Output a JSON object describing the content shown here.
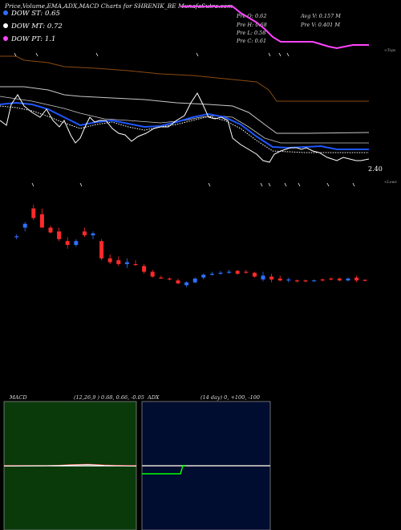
{
  "header": {
    "title": "Price,Volume,EMA,ADX,MACD Charts for SHRENIK_BE MunafaSutra.com"
  },
  "legend": [
    {
      "label": "DOW ST: 0.65",
      "color": "#2f6fff"
    },
    {
      "label": "DOW MT: 0.72",
      "color": "#ffffff"
    },
    {
      "label": "DOW PT: 1.1",
      "color": "#ff44ff"
    }
  ],
  "ohlc": {
    "open": "Pre  O: 0.62",
    "high": "Pre  H: 0.68",
    "low": "Pre  L: 0.58",
    "close": "Pre  C: 0.61",
    "avg_vol": "Avg V: 0.157 M",
    "pre_vol": "Pre  V: 0.401 M"
  },
  "side_labels": {
    "top": "<Tops",
    "lows": "<Lows"
  },
  "price_label": "2.40",
  "macd": {
    "title": "MACD",
    "params": "(12,26,9 ) 0.68, 0.66, -0.05"
  },
  "adx": {
    "title": "ADX",
    "params": "(14  day) 0, +100, -100"
  },
  "colors": {
    "ema_blue": "#1e56ff",
    "price_white": "#ffffff",
    "band_brown": "#8b4a12",
    "band_gray": "#c8c8c8",
    "dow_pt": "#ff44ff",
    "up_candle": "#2f6fff",
    "down_candle": "#ff2a2a",
    "macd_bg": "#0a3a0a",
    "adx_bg": "#000c30",
    "adx_green": "#00ff00"
  },
  "chart_data": {
    "type": "candlestick",
    "candles": [
      {
        "o": 0,
        "h": 0,
        "l": 0,
        "c": 0,
        "up": true
      },
      {
        "o": 0.97,
        "h": 0.985,
        "l": 0.96,
        "c": 0.975,
        "up": true
      },
      {
        "o": 1.02,
        "h": 1.05,
        "l": 1.0,
        "c": 1.04,
        "up": true
      },
      {
        "o": 1.12,
        "h": 1.14,
        "l": 1.06,
        "c": 1.07,
        "up": false
      },
      {
        "o": 1.09,
        "h": 1.12,
        "l": 1.02,
        "c": 1.02,
        "up": false
      },
      {
        "o": 1.02,
        "h": 1.03,
        "l": 0.99,
        "c": 0.995,
        "up": false
      },
      {
        "o": 1.0,
        "h": 1.02,
        "l": 0.95,
        "c": 0.96,
        "up": false
      },
      {
        "o": 0.95,
        "h": 0.97,
        "l": 0.91,
        "c": 0.93,
        "up": false
      },
      {
        "o": 0.93,
        "h": 0.96,
        "l": 0.92,
        "c": 0.95,
        "up": true
      },
      {
        "o": 1.0,
        "h": 1.02,
        "l": 0.97,
        "c": 0.98,
        "up": false
      },
      {
        "o": 0.98,
        "h": 1.0,
        "l": 0.96,
        "c": 0.99,
        "up": true
      },
      {
        "o": 0.95,
        "h": 0.96,
        "l": 0.85,
        "c": 0.86,
        "up": false
      },
      {
        "o": 0.86,
        "h": 0.88,
        "l": 0.83,
        "c": 0.84,
        "up": false
      },
      {
        "o": 0.85,
        "h": 0.87,
        "l": 0.82,
        "c": 0.83,
        "up": false
      },
      {
        "o": 0.83,
        "h": 0.86,
        "l": 0.81,
        "c": 0.84,
        "up": true
      },
      {
        "o": 0.83,
        "h": 0.85,
        "l": 0.82,
        "c": 0.83,
        "up": false
      },
      {
        "o": 0.82,
        "h": 0.83,
        "l": 0.78,
        "c": 0.79,
        "up": false
      },
      {
        "o": 0.79,
        "h": 0.8,
        "l": 0.76,
        "c": 0.765,
        "up": false
      },
      {
        "o": 0.76,
        "h": 0.77,
        "l": 0.755,
        "c": 0.76,
        "up": false
      },
      {
        "o": 0.755,
        "h": 0.76,
        "l": 0.745,
        "c": 0.75,
        "up": false
      },
      {
        "o": 0.745,
        "h": 0.755,
        "l": 0.725,
        "c": 0.73,
        "up": false
      },
      {
        "o": 0.72,
        "h": 0.74,
        "l": 0.71,
        "c": 0.735,
        "up": true
      },
      {
        "o": 0.735,
        "h": 0.76,
        "l": 0.73,
        "c": 0.755,
        "up": true
      },
      {
        "o": 0.76,
        "h": 0.78,
        "l": 0.75,
        "c": 0.775,
        "up": true
      },
      {
        "o": 0.775,
        "h": 0.79,
        "l": 0.77,
        "c": 0.78,
        "up": true
      },
      {
        "o": 0.78,
        "h": 0.795,
        "l": 0.775,
        "c": 0.785,
        "up": true
      },
      {
        "o": 0.785,
        "h": 0.8,
        "l": 0.78,
        "c": 0.79,
        "up": true
      },
      {
        "o": 0.795,
        "h": 0.8,
        "l": 0.775,
        "c": 0.78,
        "up": false
      },
      {
        "o": 0.79,
        "h": 0.8,
        "l": 0.78,
        "c": 0.785,
        "up": false
      },
      {
        "o": 0.785,
        "h": 0.79,
        "l": 0.76,
        "c": 0.765,
        "up": false
      },
      {
        "o": 0.77,
        "h": 0.79,
        "l": 0.74,
        "c": 0.75,
        "up": true
      },
      {
        "o": 0.75,
        "h": 0.78,
        "l": 0.735,
        "c": 0.765,
        "up": false
      },
      {
        "o": 0.755,
        "h": 0.77,
        "l": 0.74,
        "c": 0.745,
        "up": false
      },
      {
        "o": 0.75,
        "h": 0.76,
        "l": 0.735,
        "c": 0.745,
        "up": true
      },
      {
        "o": 0.745,
        "h": 0.75,
        "l": 0.735,
        "c": 0.74,
        "up": false
      },
      {
        "o": 0.74,
        "h": 0.75,
        "l": 0.735,
        "c": 0.745,
        "up": false
      },
      {
        "o": 0.745,
        "h": 0.75,
        "l": 0.74,
        "c": 0.745,
        "up": true
      },
      {
        "o": 0.745,
        "h": 0.755,
        "l": 0.74,
        "c": 0.75,
        "up": false
      },
      {
        "o": 0.75,
        "h": 0.76,
        "l": 0.745,
        "c": 0.755,
        "up": false
      },
      {
        "o": 0.755,
        "h": 0.76,
        "l": 0.74,
        "c": 0.745,
        "up": false
      },
      {
        "o": 0.745,
        "h": 0.76,
        "l": 0.74,
        "c": 0.755,
        "up": true
      },
      {
        "o": 0.76,
        "h": 0.77,
        "l": 0.735,
        "c": 0.745,
        "up": false
      },
      {
        "o": 0.745,
        "h": 0.75,
        "l": 0.74,
        "c": 0.748,
        "up": false
      }
    ]
  }
}
